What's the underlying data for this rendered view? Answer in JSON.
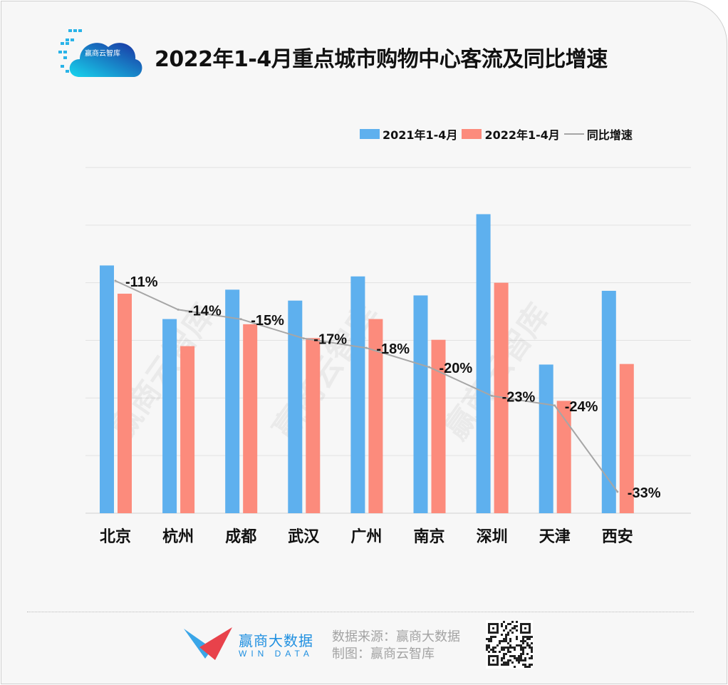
{
  "header": {
    "title": "2022年1-4月重点城市购物中心客流及同比增速",
    "logo_text": "赢商云智库"
  },
  "watermark": "赢商云智库",
  "colors": {
    "series_2021": "#5eb0ee",
    "series_2022": "#fc8b7c",
    "growth_line": "#a6a6a6"
  },
  "chart_data": {
    "type": "bar",
    "title": "2022年1-4月重点城市购物中心客流及同比增速",
    "categories": [
      "北京",
      "杭州",
      "成都",
      "武汉",
      "广州",
      "南京",
      "深圳",
      "天津",
      "西安"
    ],
    "series": [
      {
        "name": "2021年1-4月",
        "type": "bar",
        "values": [
          4.3,
          3.37,
          3.88,
          3.69,
          4.11,
          3.78,
          5.19,
          2.58,
          3.86
        ]
      },
      {
        "name": "2022年1-4月",
        "type": "bar",
        "values": [
          3.81,
          2.9,
          3.28,
          3.04,
          3.37,
          3.01,
          4.0,
          1.95,
          2.59
        ]
      },
      {
        "name": "同比增速",
        "type": "line",
        "values": [
          -11,
          -14,
          -15,
          -17,
          -18,
          -20,
          -23,
          -24,
          -33
        ],
        "labels": [
          "-11%",
          "-14%",
          "-15%",
          "-17%",
          "-18%",
          "-20%",
          "-23%",
          "-24%",
          "-33%"
        ]
      }
    ],
    "ylim": [
      0,
      6
    ],
    "y2lim": [
      -40,
      0
    ],
    "grid": true,
    "y_tick_labels_shown": false,
    "legend": "top-right"
  },
  "footer": {
    "brand_cn": "赢商大数据",
    "brand_en": "WIN DATA",
    "source": "数据来源：赢商大数据",
    "made_by": "制图：赢商云智库"
  }
}
